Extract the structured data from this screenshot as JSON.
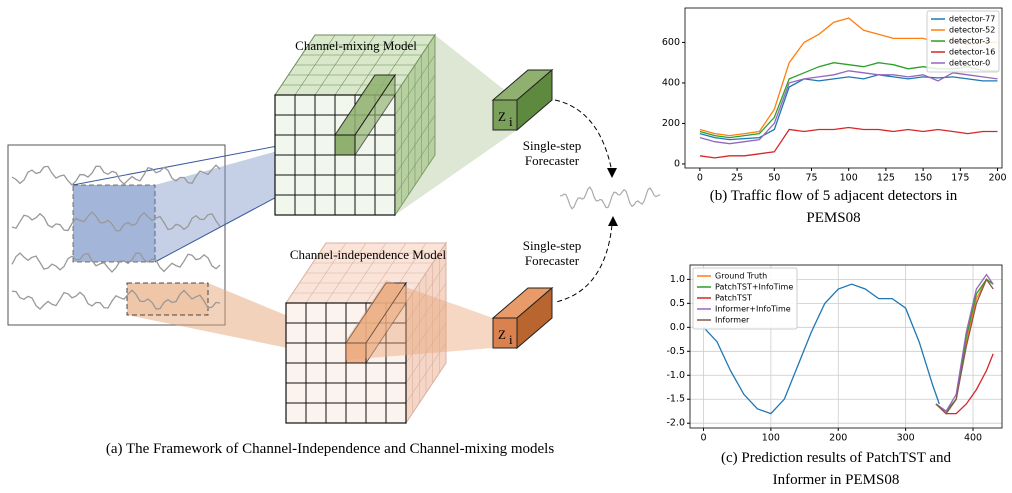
{
  "diagram": {
    "mixing_title": "Channel-mixing Model",
    "independence_title": "Channel-independence Model",
    "forecaster_top": [
      "Single-step",
      "Forecaster"
    ],
    "forecaster_bottom": [
      "Single-step",
      "Forecaster"
    ],
    "z_label": "Z",
    "z_subscript": "i",
    "caption": "(a) The Framework of Channel-Independence and Channel-mixing models"
  },
  "chart_data": [
    {
      "type": "line",
      "caption": [
        "(b) Traffic flow of 5 adjacent detectors in",
        "PEMS08"
      ],
      "x": [
        0,
        10,
        20,
        30,
        40,
        50,
        60,
        70,
        80,
        90,
        100,
        110,
        120,
        130,
        140,
        150,
        160,
        170,
        180,
        190,
        200
      ],
      "series": [
        {
          "name": "detector-77",
          "color": "#1f77b4",
          "values": [
            150,
            130,
            120,
            125,
            130,
            170,
            380,
            420,
            410,
            420,
            430,
            420,
            440,
            430,
            420,
            430,
            425,
            430,
            420,
            410,
            410
          ]
        },
        {
          "name": "detector-52",
          "color": "#ff7f0e",
          "values": [
            170,
            150,
            140,
            150,
            160,
            270,
            500,
            600,
            640,
            700,
            720,
            660,
            640,
            620,
            620,
            620,
            600,
            610,
            590,
            600,
            600
          ]
        },
        {
          "name": "detector-3",
          "color": "#2ca02c",
          "values": [
            160,
            140,
            130,
            140,
            150,
            230,
            420,
            450,
            480,
            500,
            490,
            480,
            500,
            490,
            470,
            480,
            470,
            470,
            480,
            460,
            460
          ]
        },
        {
          "name": "detector-16",
          "color": "#d62728",
          "values": [
            40,
            30,
            40,
            40,
            50,
            60,
            170,
            160,
            170,
            170,
            180,
            170,
            170,
            160,
            170,
            160,
            170,
            160,
            150,
            160,
            160
          ]
        },
        {
          "name": "detector-0",
          "color": "#9467bd",
          "values": [
            130,
            110,
            100,
            110,
            120,
            200,
            400,
            420,
            430,
            440,
            460,
            450,
            440,
            440,
            430,
            440,
            410,
            450,
            440,
            430,
            420
          ]
        }
      ],
      "xlim": [
        -10,
        203
      ],
      "xticks": [
        0,
        25,
        50,
        75,
        100,
        125,
        150,
        175,
        200
      ],
      "ylim": [
        -20,
        770
      ],
      "yticks": [
        0,
        200,
        400,
        600
      ],
      "grid": false,
      "legend": "upper right"
    },
    {
      "type": "line",
      "caption": [
        "(c) Prediction results of PatchTST and",
        "Informer in PEMS08"
      ],
      "series": [
        {
          "color": "#1f77b4",
          "x": [
            0,
            20,
            40,
            60,
            80,
            100,
            120,
            140,
            160,
            180,
            200,
            220,
            240,
            260,
            280,
            300,
            320,
            340,
            350
          ],
          "values": [
            0.0,
            -0.3,
            -0.9,
            -1.4,
            -1.7,
            -1.8,
            -1.5,
            -0.8,
            -0.1,
            0.5,
            0.8,
            0.9,
            0.8,
            0.6,
            0.6,
            0.4,
            -0.3,
            -1.2,
            -1.6
          ]
        },
        {
          "name": "Ground Truth",
          "color": "#ff7f0e",
          "x": [
            345,
            360,
            375,
            390,
            405,
            420,
            430
          ],
          "values": [
            -1.6,
            -1.8,
            -1.5,
            -0.3,
            0.6,
            1.0,
            0.9
          ]
        },
        {
          "name": "PatchTST+InfoTime",
          "color": "#2ca02c",
          "x": [
            345,
            360,
            375,
            390,
            405,
            420,
            430
          ],
          "values": [
            -1.6,
            -1.75,
            -1.5,
            -0.2,
            0.7,
            1.0,
            0.9
          ]
        },
        {
          "name": "PatchTST",
          "color": "#d62728",
          "x": [
            345,
            360,
            375,
            390,
            405,
            420,
            430
          ],
          "values": [
            -1.6,
            -1.8,
            -1.8,
            -1.6,
            -1.3,
            -0.9,
            -0.55
          ]
        },
        {
          "name": "Informer+InfoTime",
          "color": "#9467bd",
          "x": [
            345,
            360,
            375,
            390,
            405,
            420,
            430
          ],
          "values": [
            -1.6,
            -1.75,
            -1.4,
            -0.1,
            0.8,
            1.1,
            0.9
          ]
        },
        {
          "name": "Informer",
          "color": "#8c564b",
          "x": [
            345,
            360,
            375,
            390,
            405,
            420,
            430
          ],
          "values": [
            -1.6,
            -1.8,
            -1.5,
            -0.4,
            0.5,
            1.0,
            0.8
          ]
        }
      ],
      "xlim": [
        -20,
        443
      ],
      "xticks": [
        0,
        100,
        200,
        300,
        400
      ],
      "ylim": [
        -2.1,
        1.3
      ],
      "yticks": [
        {
          "value": -2.0,
          "label": "-2.0"
        },
        -1.5,
        {
          "value": -1.0,
          "label": "-1.0"
        },
        -0.5,
        {
          "value": 0.0,
          "label": "0.0"
        },
        0.5,
        {
          "value": 1.0,
          "label": "1.0"
        }
      ],
      "grid": true,
      "legend": "upper left"
    }
  ]
}
